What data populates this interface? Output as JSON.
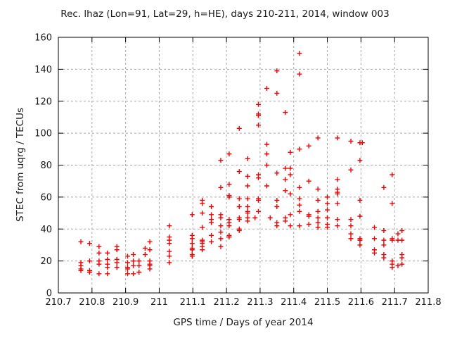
{
  "title": "Rec. lhaz (Lon=91, Lat=29, h=HE), days 210-211, 2014, window 003",
  "colors": {
    "background": "#ffffff",
    "marker": "#ee0000",
    "grid": "#a8a8a8",
    "axis": "#000000",
    "text": "#1a1a1a"
  },
  "chart_data": {
    "type": "scatter",
    "title": "Rec. lhaz (Lon=91, Lat=29, h=HE), days 210-211, 2014, window 003",
    "xlabel": "GPS time / Days of year 2014",
    "ylabel": "STEC from uqrg / TECUs",
    "xlim": [
      210.7,
      211.8
    ],
    "ylim": [
      0,
      160
    ],
    "x_tick_values": [
      210.7,
      210.8,
      210.9,
      211.0,
      211.1,
      211.2,
      211.3,
      211.4,
      211.5,
      211.6,
      211.7,
      211.8
    ],
    "x_tick_labels": [
      "210.7",
      "210.8",
      "210.9",
      "211",
      "211.1",
      "211.2",
      "211.3",
      "211.4",
      "211.5",
      "211.6",
      "211.7",
      "211.8"
    ],
    "y_tick_values": [
      0,
      20,
      40,
      60,
      80,
      100,
      120,
      140,
      160
    ],
    "y_tick_labels": [
      "0",
      "20",
      "40",
      "60",
      "80",
      "100",
      "120",
      "140",
      "160"
    ],
    "grid": true,
    "legend": "none",
    "marker": "plus",
    "columns": [
      {
        "x": 210.767,
        "ys": [
          32,
          19,
          17,
          15,
          14
        ]
      },
      {
        "x": 210.793,
        "ys": [
          31,
          20,
          14,
          13
        ]
      },
      {
        "x": 210.821,
        "ys": [
          29,
          25,
          20,
          18,
          12
        ]
      },
      {
        "x": 210.846,
        "ys": [
          25,
          21,
          18,
          16,
          12
        ]
      },
      {
        "x": 210.874,
        "ys": [
          29,
          27,
          21,
          19,
          16
        ]
      },
      {
        "x": 210.906,
        "ys": [
          23,
          19,
          16,
          15,
          12
        ]
      },
      {
        "x": 210.923,
        "ys": [
          24,
          20,
          17,
          12
        ]
      },
      {
        "x": 210.94,
        "ys": [
          20,
          17,
          13
        ]
      },
      {
        "x": 210.958,
        "ys": [
          28,
          24
        ]
      },
      {
        "x": 210.972,
        "ys": [
          32,
          27,
          20,
          18,
          17,
          15
        ]
      },
      {
        "x": 211.03,
        "ys": [
          42,
          35,
          33,
          31,
          26,
          23,
          19
        ]
      },
      {
        "x": 211.098,
        "ys": [
          49,
          36,
          34,
          31,
          28,
          27,
          24,
          23
        ]
      },
      {
        "x": 211.128,
        "ys": [
          58,
          56,
          50,
          41,
          33,
          32,
          31,
          29,
          27
        ]
      },
      {
        "x": 211.155,
        "ys": [
          54,
          49,
          46,
          44,
          36,
          32
        ]
      },
      {
        "x": 211.183,
        "ys": [
          83,
          66,
          49,
          47,
          42,
          38,
          34,
          29
        ]
      },
      {
        "x": 211.208,
        "ys": [
          87,
          68,
          61,
          60,
          46,
          44,
          42,
          36,
          35
        ]
      },
      {
        "x": 211.238,
        "ys": [
          103,
          76,
          59,
          54,
          47,
          46,
          40,
          39
        ]
      },
      {
        "x": 211.263,
        "ys": [
          84,
          73,
          67,
          59,
          54,
          51,
          50,
          47,
          45
        ]
      },
      {
        "x": 211.285,
        "ys": [
          47
        ]
      },
      {
        "x": 211.295,
        "ys": [
          118,
          112,
          111,
          105,
          74,
          72,
          59,
          58,
          51
        ]
      },
      {
        "x": 211.32,
        "ys": [
          128,
          93,
          87,
          80,
          67
        ]
      },
      {
        "x": 211.33,
        "ys": [
          47
        ]
      },
      {
        "x": 211.35,
        "ys": [
          139,
          125,
          75,
          58,
          54,
          44,
          42
        ]
      },
      {
        "x": 211.375,
        "ys": [
          113,
          78,
          71,
          64,
          47,
          45
        ]
      },
      {
        "x": 211.39,
        "ys": [
          88,
          78,
          74,
          62,
          49,
          42
        ]
      },
      {
        "x": 211.417,
        "ys": [
          150,
          137,
          90,
          66,
          59,
          55,
          51,
          42
        ]
      },
      {
        "x": 211.445,
        "ys": [
          92,
          70,
          49,
          48,
          43
        ]
      },
      {
        "x": 211.472,
        "ys": [
          97,
          65,
          58,
          51,
          47,
          44,
          41
        ]
      },
      {
        "x": 211.5,
        "ys": [
          60,
          56,
          52,
          47,
          43,
          41
        ]
      },
      {
        "x": 211.53,
        "ys": [
          97,
          71,
          65,
          63,
          62,
          56,
          46,
          42
        ]
      },
      {
        "x": 211.57,
        "ys": [
          95,
          77,
          46,
          42,
          37,
          34
        ]
      },
      {
        "x": 211.597,
        "ys": [
          94,
          83,
          58,
          48,
          34,
          33,
          30
        ]
      },
      {
        "x": 211.604,
        "ys": [
          94
        ]
      },
      {
        "x": 211.64,
        "ys": [
          41,
          34,
          27,
          25
        ]
      },
      {
        "x": 211.668,
        "ys": [
          66,
          39,
          33,
          30,
          24,
          22
        ]
      },
      {
        "x": 211.693,
        "ys": [
          74,
          56,
          34,
          33,
          20,
          18,
          16
        ]
      },
      {
        "x": 211.71,
        "ys": [
          37,
          33,
          17
        ]
      },
      {
        "x": 211.722,
        "ys": [
          39,
          33,
          24,
          22,
          18
        ]
      }
    ]
  }
}
